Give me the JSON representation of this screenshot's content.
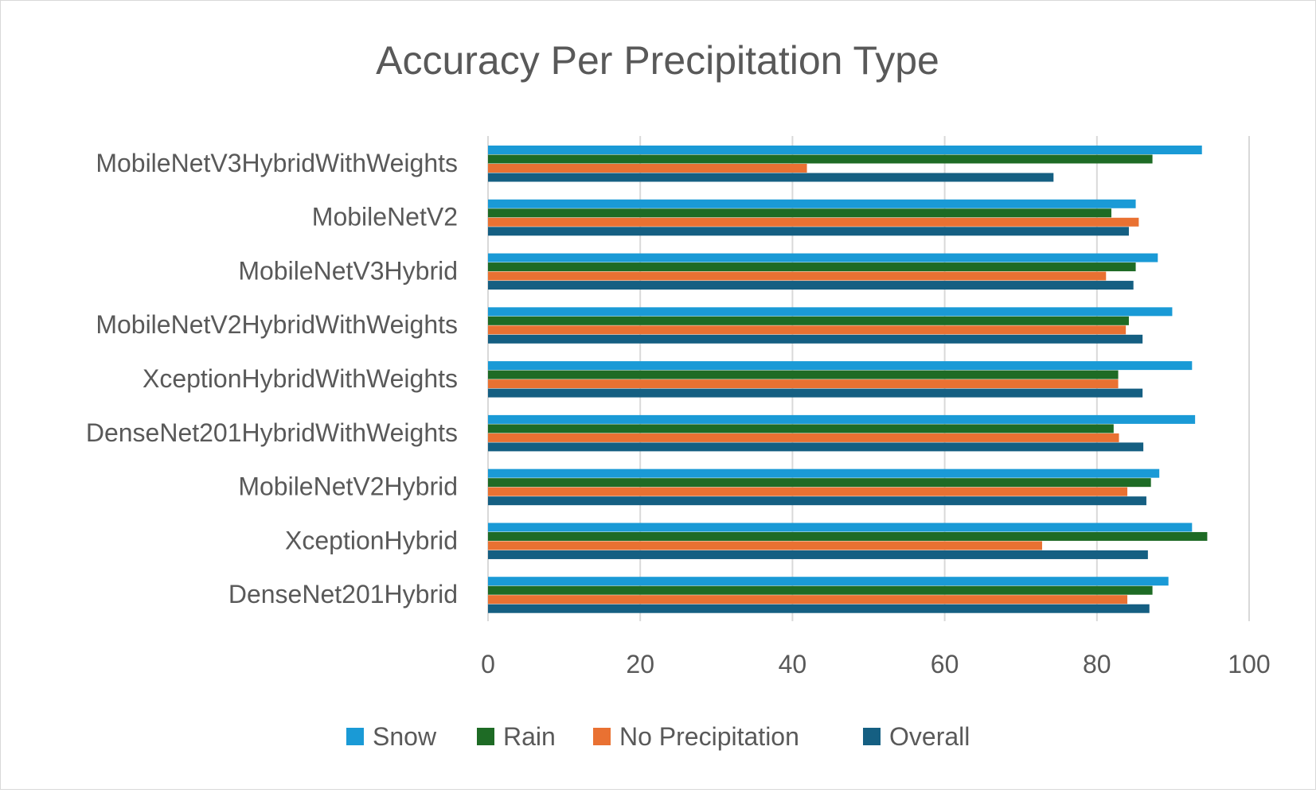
{
  "chart_data": {
    "type": "bar",
    "orientation": "horizontal",
    "title": "Accuracy Per Precipitation Type",
    "xlabel": "",
    "ylabel": "",
    "xlim": [
      0,
      100
    ],
    "xticks": [
      "0",
      "20",
      "40",
      "60",
      "80",
      "100"
    ],
    "grid": "vertical",
    "legend_position": "bottom",
    "categories": [
      "MobileNetV3HybridWithWeights",
      "MobileNetV2",
      "MobileNetV3Hybrid",
      "MobileNetV2HybridWithWeights",
      "XceptionHybridWithWeights",
      "DenseNet201HybridWithWeights",
      "MobileNetV2Hybrid",
      "XceptionHybrid",
      "DenseNet201Hybrid"
    ],
    "series": [
      {
        "name": "Snow",
        "color": "#1a9ad6",
        "values": [
          93.8,
          85.1,
          88.0,
          89.9,
          92.5,
          92.9,
          88.2,
          92.5,
          89.4
        ]
      },
      {
        "name": "Rain",
        "color": "#1e6b25",
        "values": [
          87.3,
          81.9,
          85.1,
          84.2,
          82.8,
          82.2,
          87.1,
          94.5,
          87.3
        ]
      },
      {
        "name": "No Precipitation",
        "color": "#e97132",
        "values": [
          41.9,
          85.5,
          81.2,
          83.8,
          82.8,
          82.9,
          84.0,
          72.8,
          84.0
        ]
      },
      {
        "name": "Overall",
        "color": "#155f82",
        "values": [
          74.3,
          84.2,
          84.8,
          86.0,
          86.0,
          86.1,
          86.5,
          86.7,
          86.9
        ]
      }
    ]
  }
}
